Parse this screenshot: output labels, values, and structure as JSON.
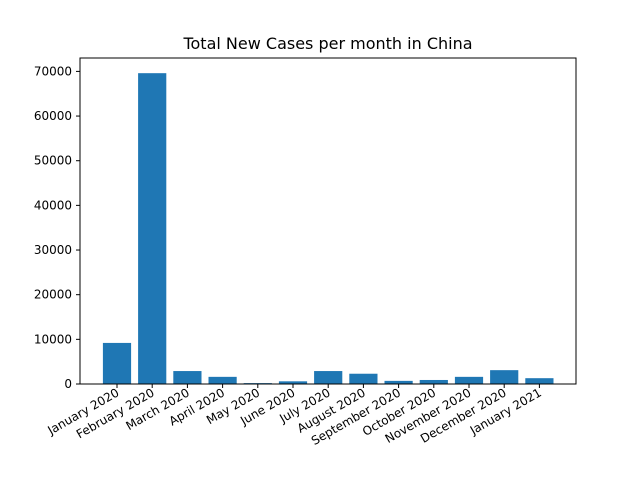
{
  "chart_data": {
    "type": "bar",
    "title": "Total New Cases per month in China",
    "xlabel": "",
    "ylabel": "",
    "categories": [
      "January 2020",
      "February 2020",
      "March 2020",
      "April 2020",
      "May 2020",
      "June 2020",
      "July 2020",
      "August 2020",
      "September 2020",
      "October 2020",
      "November 2020",
      "December 2020",
      "January 2021"
    ],
    "values": [
      9200,
      69600,
      2900,
      1600,
      200,
      600,
      2900,
      2300,
      700,
      900,
      1600,
      3100,
      1300
    ],
    "ylim": [
      0,
      73000
    ],
    "yticks": [
      0,
      10000,
      20000,
      30000,
      40000,
      50000,
      60000,
      70000
    ],
    "grid": false,
    "legend": "none",
    "bar_color": "#1f77b4"
  }
}
